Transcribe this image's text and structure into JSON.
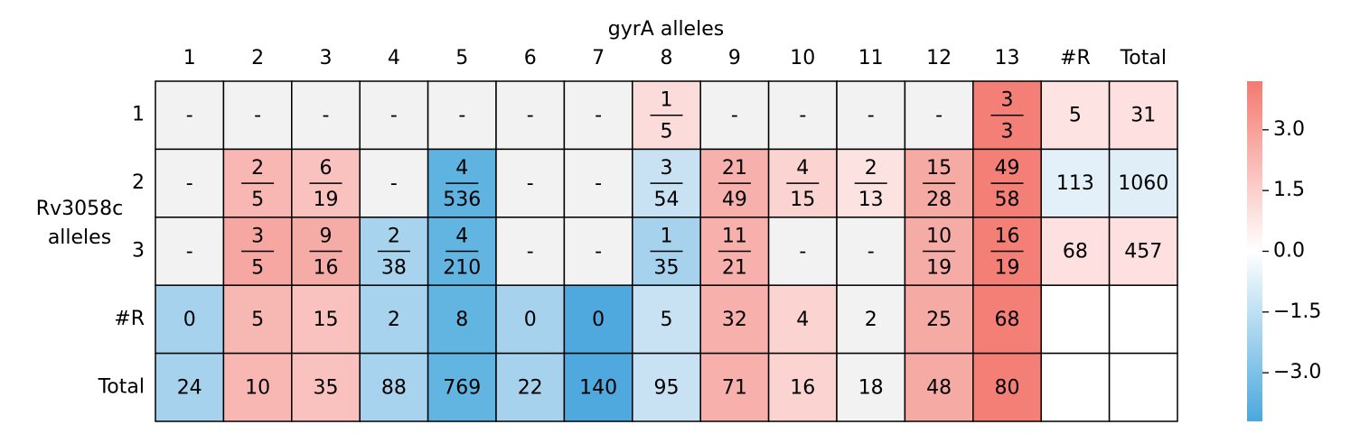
{
  "chart_data": {
    "type": "heatmap",
    "title": "gyrA alleles",
    "row_axis_label": [
      "Rv3058c",
      "alleles"
    ],
    "columns": [
      "1",
      "2",
      "3",
      "4",
      "5",
      "6",
      "7",
      "8",
      "9",
      "10",
      "11",
      "12",
      "13",
      "#R",
      "Total"
    ],
    "rows": [
      "1",
      "2",
      "3",
      "#R",
      "Total"
    ],
    "cells": [
      [
        {
          "text": "-",
          "color": "#f2f2f2"
        },
        {
          "text": "-",
          "color": "#f2f2f2"
        },
        {
          "text": "-",
          "color": "#f2f2f2"
        },
        {
          "text": "-",
          "color": "#f2f2f2"
        },
        {
          "text": "-",
          "color": "#f2f2f2"
        },
        {
          "text": "-",
          "color": "#f2f2f2"
        },
        {
          "text": "-",
          "color": "#f2f2f2"
        },
        {
          "num": 1,
          "den": 5,
          "color": "#fbdcda"
        },
        {
          "text": "-",
          "color": "#f2f2f2"
        },
        {
          "text": "-",
          "color": "#f2f2f2"
        },
        {
          "text": "-",
          "color": "#f2f2f2"
        },
        {
          "text": "-",
          "color": "#f2f2f2"
        },
        {
          "num": 3,
          "den": 3,
          "color": "#f47f76"
        },
        {
          "text": 5,
          "color": "#fde3e2"
        },
        {
          "text": 31,
          "color": "#fde0df"
        }
      ],
      [
        {
          "text": "-",
          "color": "#f2f2f2"
        },
        {
          "num": 2,
          "den": 5,
          "color": "#f8b7b2"
        },
        {
          "num": 6,
          "den": 19,
          "color": "#f9c2be"
        },
        {
          "text": "-",
          "color": "#f2f2f2"
        },
        {
          "num": 4,
          "den": 536,
          "color": "#5fb3e0"
        },
        {
          "text": "-",
          "color": "#f2f2f2"
        },
        {
          "text": "-",
          "color": "#f2f2f2"
        },
        {
          "num": 3,
          "den": 54,
          "color": "#c8e2f3"
        },
        {
          "num": 21,
          "den": 49,
          "color": "#f7b0ab"
        },
        {
          "num": 4,
          "den": 15,
          "color": "#fbd3d0"
        },
        {
          "num": 2,
          "den": 13,
          "color": "#fce2e0"
        },
        {
          "num": 15,
          "den": 28,
          "color": "#f6aaa4"
        },
        {
          "num": 49,
          "den": 58,
          "color": "#f47f76"
        },
        {
          "text": 113,
          "color": "#e3f0f9"
        },
        {
          "text": 1060,
          "color": "#e0eef8"
        }
      ],
      [
        {
          "text": "-",
          "color": "#f2f2f2"
        },
        {
          "num": 3,
          "den": 5,
          "color": "#f6a7a1"
        },
        {
          "num": 9,
          "den": 16,
          "color": "#f6aca6"
        },
        {
          "num": 2,
          "den": 38,
          "color": "#a8d3ee"
        },
        {
          "num": 4,
          "den": 210,
          "color": "#62b4e1"
        },
        {
          "text": "-",
          "color": "#f2f2f2"
        },
        {
          "text": "-",
          "color": "#f2f2f2"
        },
        {
          "num": 1,
          "den": 35,
          "color": "#a6d2ee"
        },
        {
          "num": 11,
          "den": 21,
          "color": "#f7b0ab"
        },
        {
          "text": "-",
          "color": "#f2f2f2"
        },
        {
          "text": "-",
          "color": "#f2f2f2"
        },
        {
          "num": 10,
          "den": 19,
          "color": "#f6aca6"
        },
        {
          "num": 16,
          "den": 19,
          "color": "#f47f76"
        },
        {
          "text": 68,
          "color": "#fde0df"
        },
        {
          "text": 457,
          "color": "#fde0df"
        }
      ],
      [
        {
          "text": 0,
          "color": "#a6d2ee"
        },
        {
          "text": 5,
          "color": "#f7b7b2"
        },
        {
          "text": 15,
          "color": "#f9c2be"
        },
        {
          "text": 2,
          "color": "#a8d3ee"
        },
        {
          "text": 8,
          "color": "#62b4e1"
        },
        {
          "text": 0,
          "color": "#a6d2ee"
        },
        {
          "text": 0,
          "color": "#4fa9de"
        },
        {
          "text": 5,
          "color": "#c8e2f3"
        },
        {
          "text": 32,
          "color": "#f7b0ab"
        },
        {
          "text": 4,
          "color": "#fbd3d0"
        },
        {
          "text": 2,
          "color": "#f2f2f2"
        },
        {
          "text": 25,
          "color": "#f6aaa4"
        },
        {
          "text": 68,
          "color": "#f47f76"
        },
        {
          "color": "#ffffff"
        },
        {
          "color": "#ffffff"
        }
      ],
      [
        {
          "text": 24,
          "color": "#a6d2ee"
        },
        {
          "text": 10,
          "color": "#f8b7b2"
        },
        {
          "text": 35,
          "color": "#f9c2be"
        },
        {
          "text": 88,
          "color": "#a8d3ee"
        },
        {
          "text": 769,
          "color": "#62b4e1"
        },
        {
          "text": 22,
          "color": "#a6d2ee"
        },
        {
          "text": 140,
          "color": "#4fa9de"
        },
        {
          "text": 95,
          "color": "#c8e2f3"
        },
        {
          "text": 71,
          "color": "#f7b0ab"
        },
        {
          "text": 16,
          "color": "#fbd3d0"
        },
        {
          "text": 18,
          "color": "#f2f2f2"
        },
        {
          "text": 48,
          "color": "#f6aaa4"
        },
        {
          "text": 80,
          "color": "#f47f76"
        },
        {
          "color": "#ffffff"
        },
        {
          "color": "#ffffff"
        }
      ]
    ],
    "colorbar": {
      "lim": [
        -4.2,
        4.2
      ],
      "colors": [
        "#4aa8de",
        "#ffffff",
        "#f47a70"
      ],
      "ticks": [
        {
          "value": 3,
          "label": "3.0"
        },
        {
          "value": 1.5,
          "label": "1.5"
        },
        {
          "value": 0,
          "label": "0.0"
        },
        {
          "value": -1.5,
          "label": "−1.5"
        },
        {
          "value": -3,
          "label": "−3.0"
        }
      ]
    }
  }
}
